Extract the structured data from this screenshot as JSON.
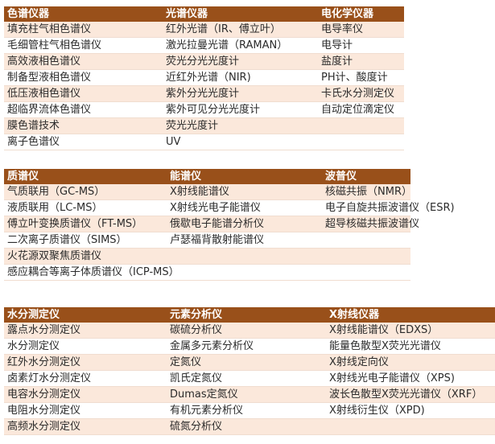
{
  "tables": [
    {
      "headers": [
        "色谱仪器",
        "光谱仪器",
        "电化学仪器"
      ],
      "rows": [
        [
          "填充柱气相色谱仪",
          "红外光谱（IR、傅立叶）",
          "电导率仪"
        ],
        [
          "毛细管柱气相色谱仪",
          "激光拉曼光谱（RAMAN）",
          "电导计"
        ],
        [
          "高效液相色谱仪",
          "荧光分光光度计",
          "盐度计"
        ],
        [
          "制备型液相色谱仪",
          "近红外光谱（NIR)",
          "PH计、酸度计"
        ],
        [
          "低压液相色谱仪",
          "紫外分光光度计",
          "卡氏水分测定仪"
        ],
        [
          "超临界流体色谱仪",
          "紫外可见分光光度计",
          "自动定位滴定仪"
        ],
        [
          "膜色谱技术",
          "荧光光度计",
          ""
        ],
        [
          "离子色谱仪",
          "UV",
          ""
        ]
      ]
    },
    {
      "headers": [
        "质谱仪",
        "能谱仪",
        "波普仪"
      ],
      "rows": [
        [
          "气质联用（GC-MS）",
          "X射线能谱仪",
          "核磁共振（NMR）"
        ],
        [
          "液质联用（LC-MS）",
          "X射线光电子能谱仪",
          "电子自旋共振波谱仪（ESR)"
        ],
        [
          "傅立叶变换质谱仪（FT-MS）",
          "俄歇电子能谱分析仪",
          "超导核磁共振波谱仪"
        ],
        [
          "二次离子质谱仪（SIMS）",
          "卢瑟福背散射能谱仪",
          ""
        ],
        [
          "火花源双聚焦质谱仪",
          "",
          ""
        ],
        [
          "感应耦合等离子体质谱仪（ICP-MS）",
          "",
          ""
        ]
      ]
    },
    {
      "headers": [
        "水分测定仪",
        "元素分析仪",
        "X射线仪器"
      ],
      "rows": [
        [
          "露点水分测定仪",
          "碳硫分析仪",
          "X射线能谱仪（EDXS）"
        ],
        [
          "水分测定仪",
          "金属多元素分析仪",
          "能量色散型X荧光光谱仪"
        ],
        [
          "红外水分测定仪",
          "定氮仪",
          "X射线定向仪"
        ],
        [
          "卤素灯水分测定仪",
          "凯氏定氮仪",
          "X射线光电子能谱仪（XPS)"
        ],
        [
          "电容水分测定仪",
          "Dumas定氮仪",
          "波长色散型X荧光光谱仪（XRF）"
        ],
        [
          "电阻水分测定仪",
          "有机元素分析仪",
          "X射线衍生仪（XPD)"
        ],
        [
          "高频水分测定仪",
          "硫氮分析仪",
          ""
        ]
      ]
    }
  ],
  "colors": {
    "header_bg": "#99501a",
    "header_text": "#ffffff",
    "stripe": "#fbe8db"
  }
}
